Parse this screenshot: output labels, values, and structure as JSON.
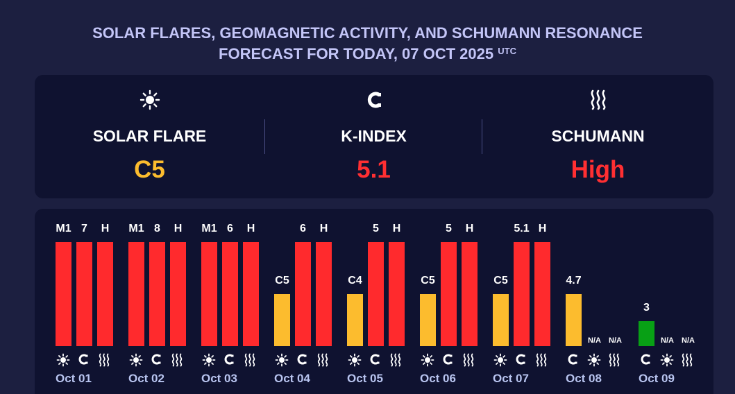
{
  "header": {
    "title_line1": "SOLAR FLARES, GEOMAGNETIC ACTIVITY, AND SCHUMANN RESONANCE",
    "title_line2": "FORECAST FOR TODAY, 07 OCT 2025",
    "title_sup": "UTC"
  },
  "summary": {
    "solar": {
      "icon": "sun-icon",
      "label": "SOLAR FLARE",
      "value": "C5",
      "color": "#fcbc2e"
    },
    "kindex": {
      "icon": "magnet-icon",
      "label": "K-INDEX",
      "value": "5.1",
      "color": "#ff2f32"
    },
    "schumann": {
      "icon": "waves-icon",
      "label": "SCHUMANN",
      "value": "High",
      "color": "#ff2f32"
    }
  },
  "colors": {
    "high": "#ff2a2d",
    "moderate": "#fcbc2e",
    "low": "#08a015"
  },
  "days": [
    {
      "date": "",
      "bars": [
        {
          "type": "schumann",
          "label": "H",
          "level": 1.0,
          "color": "#ff2a2d"
        }
      ]
    },
    {
      "date": "Oct 01",
      "bars": [
        {
          "type": "solar",
          "label": "M1",
          "level": 1.0,
          "color": "#ff2a2d"
        },
        {
          "type": "kindex",
          "label": "7",
          "level": 1.0,
          "color": "#ff2a2d"
        },
        {
          "type": "schumann",
          "label": "H",
          "level": 1.0,
          "color": "#ff2a2d"
        }
      ]
    },
    {
      "date": "Oct 02",
      "bars": [
        {
          "type": "solar",
          "label": "M1",
          "level": 1.0,
          "color": "#ff2a2d"
        },
        {
          "type": "kindex",
          "label": "8",
          "level": 1.0,
          "color": "#ff2a2d"
        },
        {
          "type": "schumann",
          "label": "H",
          "level": 1.0,
          "color": "#ff2a2d"
        }
      ]
    },
    {
      "date": "Oct 03",
      "bars": [
        {
          "type": "solar",
          "label": "M1",
          "level": 1.0,
          "color": "#ff2a2d"
        },
        {
          "type": "kindex",
          "label": "6",
          "level": 1.0,
          "color": "#ff2a2d"
        },
        {
          "type": "schumann",
          "label": "H",
          "level": 1.0,
          "color": "#ff2a2d"
        }
      ]
    },
    {
      "date": "Oct 04",
      "bars": [
        {
          "type": "solar",
          "label": "C5",
          "level": 0.5,
          "color": "#fcbc2e"
        },
        {
          "type": "kindex",
          "label": "6",
          "level": 1.0,
          "color": "#ff2a2d"
        },
        {
          "type": "schumann",
          "label": "H",
          "level": 1.0,
          "color": "#ff2a2d"
        }
      ]
    },
    {
      "date": "Oct 05",
      "bars": [
        {
          "type": "solar",
          "label": "C4",
          "level": 0.5,
          "color": "#fcbc2e"
        },
        {
          "type": "kindex",
          "label": "5",
          "level": 1.0,
          "color": "#ff2a2d"
        },
        {
          "type": "schumann",
          "label": "H",
          "level": 1.0,
          "color": "#ff2a2d"
        }
      ]
    },
    {
      "date": "Oct 06",
      "bars": [
        {
          "type": "solar",
          "label": "C5",
          "level": 0.5,
          "color": "#fcbc2e"
        },
        {
          "type": "kindex",
          "label": "5",
          "level": 1.0,
          "color": "#ff2a2d"
        },
        {
          "type": "schumann",
          "label": "H",
          "level": 1.0,
          "color": "#ff2a2d"
        }
      ]
    },
    {
      "date": "Oct 07",
      "bars": [
        {
          "type": "solar",
          "label": "C5",
          "level": 0.5,
          "color": "#fcbc2e"
        },
        {
          "type": "kindex",
          "label": "5.1",
          "level": 1.0,
          "color": "#ff2a2d"
        },
        {
          "type": "schumann",
          "label": "H",
          "level": 1.0,
          "color": "#ff2a2d"
        }
      ]
    },
    {
      "date": "Oct 08",
      "bars": [
        {
          "type": "kindex",
          "label": "4.7",
          "level": 0.5,
          "color": "#fcbc2e"
        },
        {
          "type": "solar",
          "label": "N/A",
          "level": 0,
          "color": ""
        },
        {
          "type": "schumann",
          "label": "N/A",
          "level": 0,
          "color": ""
        }
      ]
    },
    {
      "date": "Oct 09",
      "bars": [
        {
          "type": "kindex",
          "label": "3",
          "level": 0.24,
          "color": "#08a015"
        },
        {
          "type": "solar",
          "label": "N/A",
          "level": 0,
          "color": ""
        },
        {
          "type": "schumann",
          "label": "N/A",
          "level": 0,
          "color": ""
        }
      ]
    }
  ]
}
